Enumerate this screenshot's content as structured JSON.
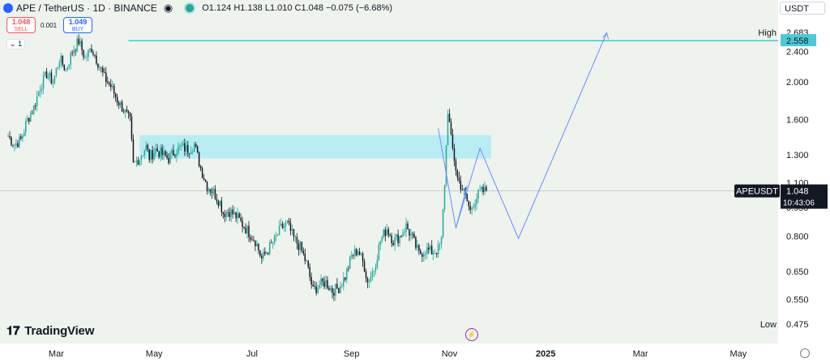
{
  "header": {
    "title": "APE / TetherUS · 1D · BINANCE",
    "ohlc": "O1.124 H1.138 L1.010 C1.048 −0.075 (−6.68%)"
  },
  "trade": {
    "sell_price": "1.048",
    "sell_label": "SELL",
    "spread": "0.001",
    "buy_price": "1.049",
    "buy_label": "BUY"
  },
  "interval_badge": "1",
  "currency_button": "USDT",
  "brand": "TradingView",
  "colors": {
    "up": "#26a69a",
    "down": "#131722",
    "zone": "#b2ebf2",
    "hline": "#00acc1",
    "path": "#6b8cff",
    "background": "#eef3ee"
  },
  "chart_data": {
    "type": "candlestick",
    "symbol": "APEUSDT",
    "price_axis": {
      "scale": "log",
      "ylim": [
        0.44,
        2.9
      ],
      "ticks": [
        "2.400",
        "2.000",
        "1.600",
        "1.300",
        "1.100",
        "0.950",
        "0.800",
        "0.650",
        "0.550"
      ]
    },
    "time_axis": {
      "ticks": [
        "Mar",
        "May",
        "Jul",
        "Sep",
        "Nov",
        "2025",
        "Mar",
        "May"
      ]
    },
    "markers": {
      "high_label": "High",
      "high_value": "2.683",
      "low_label": "Low",
      "low_value": "0.475",
      "hline_value": "2.558",
      "last_symbol": "APEUSDT",
      "last_price": "1.048",
      "countdown": "10:43:06"
    },
    "zone": {
      "price_top": 1.46,
      "price_bottom": 1.27,
      "date_start": "Apr 22",
      "date_end": "Nov 27"
    },
    "projection_path": [
      {
        "date": "Oct 25",
        "price": 1.52
      },
      {
        "date": "Nov 5",
        "price": 0.84
      },
      {
        "date": "Nov 20",
        "price": 1.35
      },
      {
        "date": "Dec 14",
        "price": 0.79
      },
      {
        "date": "Feb 7",
        "price": 2.68
      }
    ],
    "path_fragments": [
      {
        "date": "Nov 5",
        "price": 0.84
      },
      {
        "date": "Nov 12",
        "price": 1.08
      }
    ],
    "series_anchor_points": [
      [
        0,
        1.45
      ],
      [
        4,
        1.38
      ],
      [
        8,
        1.42
      ],
      [
        12,
        1.6
      ],
      [
        16,
        1.72
      ],
      [
        20,
        1.95
      ],
      [
        24,
        2.1
      ],
      [
        28,
        2.0
      ],
      [
        32,
        2.3
      ],
      [
        36,
        2.15
      ],
      [
        40,
        2.4
      ],
      [
        44,
        2.55
      ],
      [
        48,
        2.3
      ],
      [
        52,
        2.45
      ],
      [
        56,
        2.25
      ],
      [
        60,
        2.05
      ],
      [
        64,
        1.95
      ],
      [
        68,
        1.8
      ],
      [
        72,
        1.7
      ],
      [
        76,
        1.58
      ],
      [
        78,
        1.22
      ],
      [
        82,
        1.28
      ],
      [
        86,
        1.36
      ],
      [
        88,
        1.28
      ],
      [
        92,
        1.34
      ],
      [
        96,
        1.3
      ],
      [
        100,
        1.27
      ],
      [
        104,
        1.33
      ],
      [
        108,
        1.36
      ],
      [
        112,
        1.34
      ],
      [
        116,
        1.38
      ],
      [
        120,
        1.2
      ],
      [
        124,
        1.08
      ],
      [
        128,
        1.04
      ],
      [
        132,
        0.98
      ],
      [
        134,
        0.92
      ],
      [
        138,
        0.93
      ],
      [
        142,
        0.9
      ],
      [
        146,
        0.86
      ],
      [
        150,
        0.82
      ],
      [
        154,
        0.78
      ],
      [
        158,
        0.7
      ],
      [
        162,
        0.74
      ],
      [
        166,
        0.78
      ],
      [
        170,
        0.84
      ],
      [
        174,
        0.86
      ],
      [
        178,
        0.79
      ],
      [
        182,
        0.75
      ],
      [
        186,
        0.68
      ],
      [
        190,
        0.58
      ],
      [
        194,
        0.6
      ],
      [
        198,
        0.61
      ],
      [
        202,
        0.58
      ],
      [
        206,
        0.59
      ],
      [
        210,
        0.63
      ],
      [
        214,
        0.71
      ],
      [
        218,
        0.74
      ],
      [
        222,
        0.67
      ],
      [
        224,
        0.61
      ],
      [
        228,
        0.66
      ],
      [
        232,
        0.78
      ],
      [
        236,
        0.84
      ],
      [
        240,
        0.78
      ],
      [
        244,
        0.8
      ],
      [
        248,
        0.85
      ],
      [
        252,
        0.79
      ],
      [
        256,
        0.72
      ],
      [
        260,
        0.74
      ],
      [
        264,
        0.73
      ],
      [
        268,
        0.74
      ],
      [
        270,
        0.78
      ],
      [
        272,
        1.1
      ],
      [
        274,
        1.7
      ],
      [
        276,
        1.42
      ],
      [
        280,
        1.13
      ],
      [
        284,
        1.04
      ],
      [
        288,
        0.93
      ],
      [
        290,
        0.98
      ],
      [
        294,
        1.04
      ],
      [
        298,
        1.048
      ]
    ]
  }
}
